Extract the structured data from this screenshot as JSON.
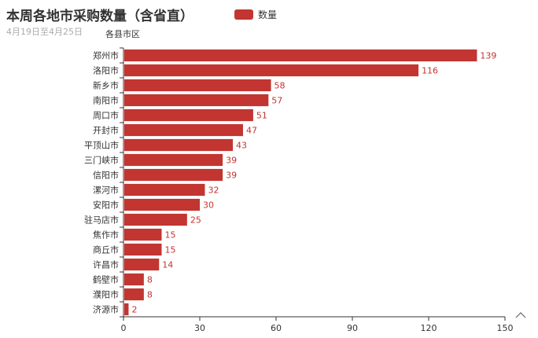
{
  "title": "本周各地市采购数量（含省直）",
  "subtitle": "4月19日至4月25日",
  "legend": {
    "label": "数量"
  },
  "chart_data": {
    "type": "bar",
    "orientation": "horizontal",
    "categories": [
      "郑州市",
      "洛阳市",
      "新乡市",
      "南阳市",
      "周口市",
      "开封市",
      "平顶山市",
      "三门峡市",
      "信阳市",
      "漯河市",
      "安阳市",
      "驻马店市",
      "焦作市",
      "商丘市",
      "许昌市",
      "鹤壁市",
      "濮阳市",
      "济源市"
    ],
    "series": [
      {
        "name": "数量",
        "values": [
          139,
          116,
          58,
          57,
          51,
          47,
          43,
          39,
          39,
          32,
          30,
          25,
          15,
          15,
          14,
          8,
          8,
          2
        ]
      }
    ],
    "ylabel": "各县市区",
    "xlabel": "",
    "xlim": [
      0,
      150
    ],
    "xticks": [
      0,
      30,
      60,
      90,
      120,
      150
    ],
    "grid": false,
    "legend_position": "top",
    "color": "#c23531",
    "data_labels": true
  },
  "toolbox": {
    "icon": "up-arrow-icon"
  }
}
